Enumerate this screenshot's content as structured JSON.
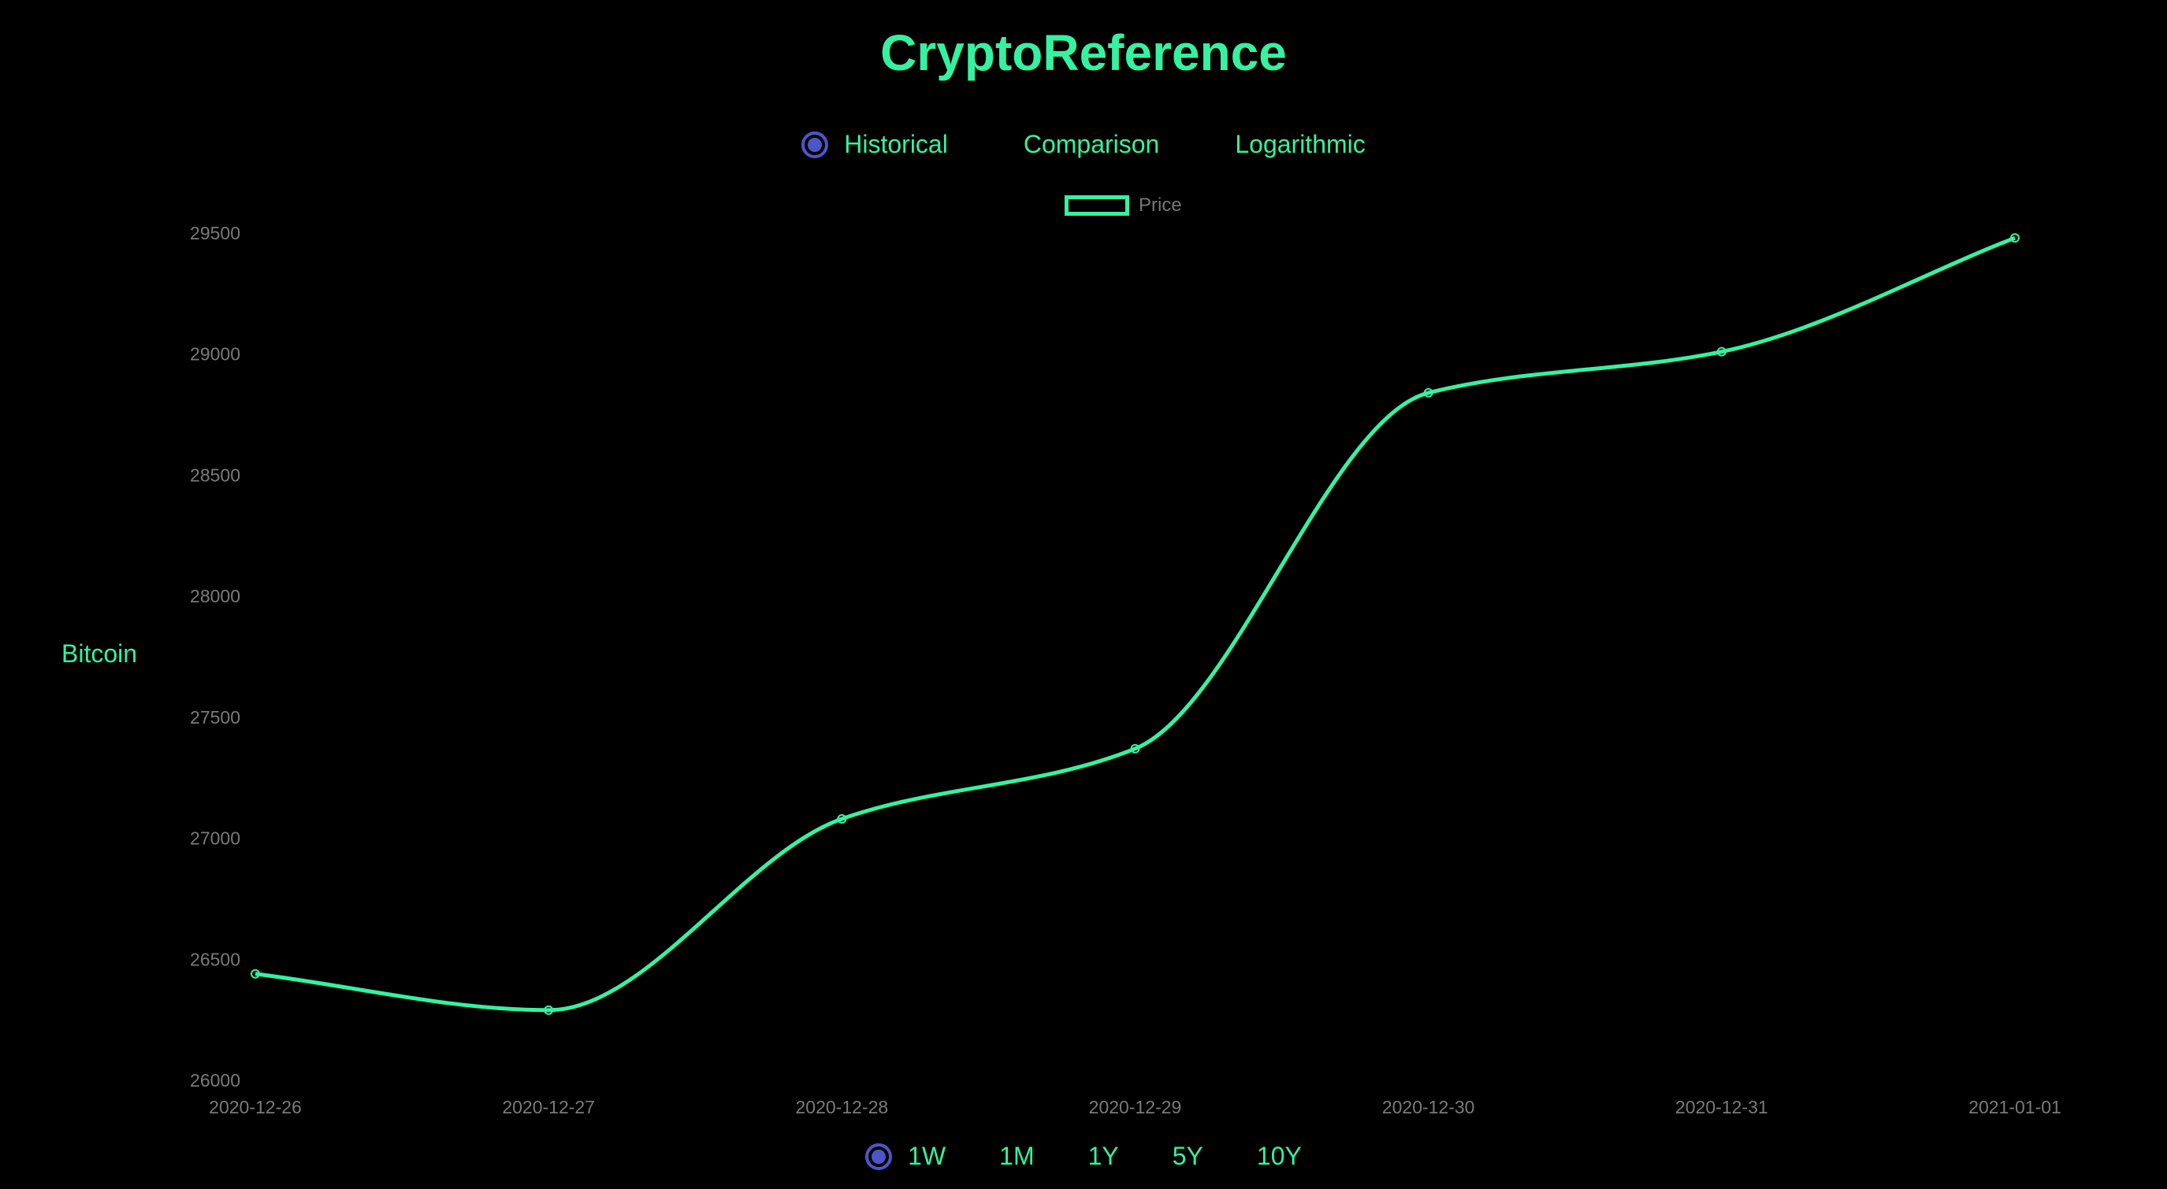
{
  "app": {
    "title": "CryptoReference"
  },
  "modes": [
    {
      "label": "Historical",
      "selected": true
    },
    {
      "label": "Comparison",
      "selected": false
    },
    {
      "label": "Logarithmic",
      "selected": false
    }
  ],
  "ranges": [
    {
      "label": "1W",
      "selected": true
    },
    {
      "label": "1M",
      "selected": false
    },
    {
      "label": "1Y",
      "selected": false
    },
    {
      "label": "5Y",
      "selected": false
    },
    {
      "label": "10Y",
      "selected": false
    }
  ],
  "colors": {
    "line": "#35f2a0",
    "accent": "#4b57c8",
    "tick": "#7a7a7a",
    "background": "#000000"
  },
  "chart_data": {
    "type": "line",
    "ylabel": "Bitcoin",
    "x": [
      "2020-12-26",
      "2020-12-27",
      "2020-12-28",
      "2020-12-29",
      "2020-12-30",
      "2020-12-31",
      "2021-01-01"
    ],
    "series": [
      {
        "name": "Price",
        "values": [
          26440,
          26290,
          27080,
          27370,
          28840,
          29010,
          29480
        ]
      }
    ],
    "ylim": [
      26000,
      29500
    ],
    "yticks": [
      "26000",
      "26500",
      "27000",
      "27500",
      "28000",
      "28500",
      "29000",
      "29500"
    ],
    "legend": "top-center",
    "grid": false
  }
}
